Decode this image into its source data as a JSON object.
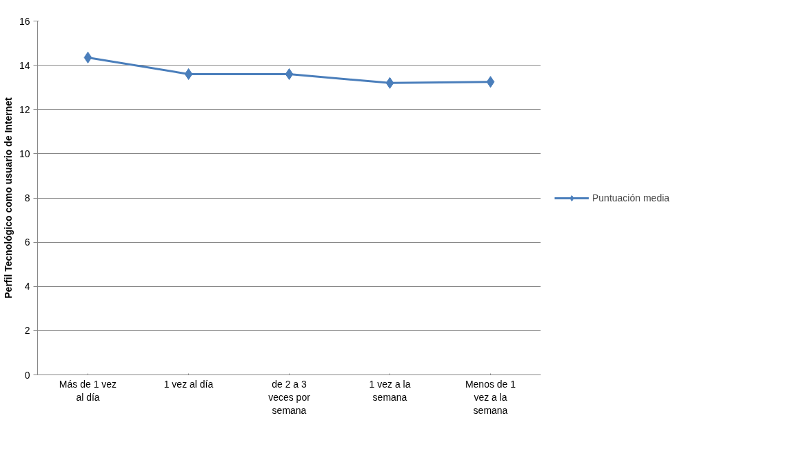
{
  "chart_data": {
    "type": "line",
    "ylabel": "Perfil Tecnológico como usuario de Internet",
    "categories": [
      "Más de 1 vez al día",
      "1 vez al día",
      "de 2 a 3 veces por semana",
      "1 vez a la semana",
      "Menos de 1 vez a la semana"
    ],
    "series": [
      {
        "name": "Puntuación media",
        "color": "#4a7ebb",
        "values": [
          14.35,
          13.6,
          13.6,
          13.2,
          13.25
        ]
      }
    ],
    "ylim": [
      0,
      16
    ],
    "yticks": [
      0,
      2,
      4,
      6,
      8,
      10,
      12,
      14,
      16
    ],
    "grid": "y",
    "legend": "right",
    "marker": "diamond",
    "line_style": "solid"
  }
}
